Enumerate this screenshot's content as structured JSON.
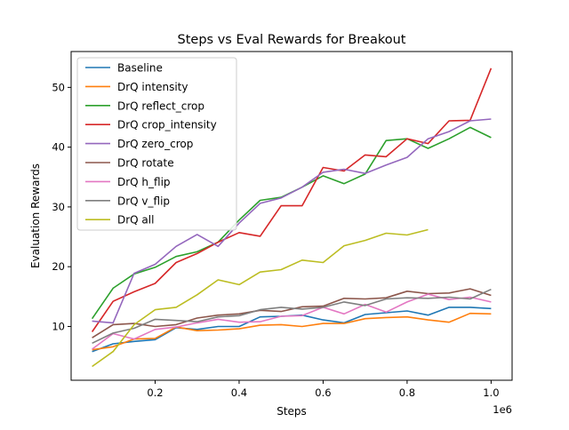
{
  "chart_data": {
    "type": "line",
    "title": "Steps vs Eval Rewards for Breakout",
    "xlabel": "Steps",
    "ylabel": "Evaluation Rewards",
    "x_scale_label": "1e6",
    "xlim": [
      0.0,
      1.05
    ],
    "ylim": [
      1.0,
      56.0
    ],
    "xticks": [
      0.2,
      0.4,
      0.6,
      0.8,
      1.0
    ],
    "xtick_labels": [
      "0.2",
      "0.4",
      "0.6",
      "0.8",
      "1.0"
    ],
    "yticks": [
      10,
      20,
      30,
      40,
      50
    ],
    "ytick_labels": [
      "10",
      "20",
      "30",
      "40",
      "50"
    ],
    "grid": false,
    "legend_position": "top-left",
    "series": [
      {
        "name": "Baseline",
        "color": "#1f77b4",
        "x": [
          0.05,
          0.1,
          0.15,
          0.2,
          0.25,
          0.3,
          0.35,
          0.4,
          0.45,
          0.5,
          0.55,
          0.6,
          0.65,
          0.7,
          0.75,
          0.8,
          0.85,
          0.9,
          0.95,
          1.0
        ],
        "y": [
          5.8,
          7.1,
          7.5,
          7.8,
          9.8,
          9.5,
          10.0,
          10.0,
          11.6,
          11.7,
          11.9,
          11.1,
          10.6,
          12.0,
          12.3,
          12.6,
          11.9,
          13.2,
          13.2,
          13.0
        ]
      },
      {
        "name": "DrQ intensity",
        "color": "#ff7f0e",
        "x": [
          0.05,
          0.1,
          0.15,
          0.2,
          0.25,
          0.3,
          0.35,
          0.4,
          0.45,
          0.5,
          0.55,
          0.6,
          0.65,
          0.7,
          0.75,
          0.8,
          0.85,
          0.9,
          0.95,
          1.0
        ],
        "y": [
          6.1,
          6.6,
          7.9,
          8.0,
          9.9,
          9.3,
          9.4,
          9.6,
          10.2,
          10.3,
          10.0,
          10.5,
          10.5,
          11.3,
          11.5,
          11.6,
          11.1,
          10.7,
          12.2,
          12.1
        ]
      },
      {
        "name": "DrQ reflect_crop",
        "color": "#2ca02c",
        "x": [
          0.05,
          0.1,
          0.15,
          0.2,
          0.25,
          0.3,
          0.35,
          0.4,
          0.45,
          0.5,
          0.55,
          0.6,
          0.65,
          0.7,
          0.75,
          0.8,
          0.85,
          0.9,
          0.95,
          1.0
        ],
        "y": [
          11.3,
          16.4,
          18.8,
          19.9,
          21.7,
          22.5,
          24.1,
          27.8,
          31.1,
          31.6,
          33.3,
          35.2,
          33.9,
          35.5,
          41.1,
          41.4,
          39.8,
          41.4,
          43.3,
          41.6
        ]
      },
      {
        "name": "DrQ crop_intensity",
        "color": "#d62728",
        "x": [
          0.05,
          0.1,
          0.15,
          0.2,
          0.25,
          0.3,
          0.35,
          0.4,
          0.45,
          0.5,
          0.55,
          0.6,
          0.65,
          0.7,
          0.75,
          0.8,
          0.85,
          0.9,
          0.95,
          1.0
        ],
        "y": [
          9.1,
          14.2,
          15.8,
          17.2,
          20.7,
          22.2,
          24.1,
          25.7,
          25.1,
          30.2,
          30.2,
          36.6,
          36.0,
          38.7,
          38.4,
          41.4,
          40.6,
          44.4,
          44.5,
          53.2
        ]
      },
      {
        "name": "DrQ zero_crop",
        "color": "#9467bd",
        "x": [
          0.05,
          0.1,
          0.15,
          0.2,
          0.25,
          0.3,
          0.35,
          0.4,
          0.45,
          0.5,
          0.55,
          0.6,
          0.65,
          0.7,
          0.75,
          0.8,
          0.85,
          0.9,
          0.95,
          1.0
        ],
        "y": [
          10.9,
          10.6,
          18.9,
          20.4,
          23.4,
          25.4,
          23.4,
          27.3,
          30.6,
          31.5,
          33.3,
          35.8,
          36.3,
          35.6,
          37.0,
          38.3,
          41.4,
          42.6,
          44.4,
          44.7
        ]
      },
      {
        "name": "DrQ rotate",
        "color": "#8c564b",
        "x": [
          0.05,
          0.1,
          0.15,
          0.2,
          0.25,
          0.3,
          0.35,
          0.4,
          0.45,
          0.5,
          0.55,
          0.6,
          0.65,
          0.7,
          0.75,
          0.8,
          0.85,
          0.9,
          0.95,
          1.0
        ],
        "y": [
          8.1,
          10.3,
          10.5,
          10.0,
          10.3,
          11.4,
          11.9,
          12.1,
          12.7,
          12.5,
          13.3,
          13.4,
          14.7,
          14.6,
          14.8,
          15.9,
          15.5,
          15.6,
          16.3,
          15.2
        ]
      },
      {
        "name": "DrQ h_flip",
        "color": "#e377c2",
        "x": [
          0.05,
          0.1,
          0.15,
          0.2,
          0.25,
          0.3,
          0.35,
          0.4,
          0.45,
          0.5,
          0.55,
          0.6,
          0.65,
          0.7,
          0.75,
          0.8,
          0.85,
          0.9,
          0.95,
          1.0
        ],
        "y": [
          6.2,
          8.8,
          7.9,
          9.5,
          9.9,
          10.6,
          11.2,
          10.7,
          10.8,
          11.7,
          11.8,
          13.2,
          12.1,
          13.7,
          12.4,
          14.1,
          15.4,
          14.5,
          14.9,
          14.1
        ]
      },
      {
        "name": "DrQ v_flip",
        "color": "#7f7f7f",
        "x": [
          0.05,
          0.1,
          0.15,
          0.2,
          0.25,
          0.3,
          0.35,
          0.4,
          0.45,
          0.5,
          0.55,
          0.6,
          0.65,
          0.7,
          0.75,
          0.8,
          0.85,
          0.9,
          0.95,
          1.0
        ],
        "y": [
          7.2,
          8.9,
          9.7,
          11.2,
          11.0,
          10.8,
          11.6,
          11.8,
          12.8,
          13.2,
          12.9,
          13.2,
          14.1,
          13.5,
          14.6,
          14.8,
          14.7,
          14.9,
          14.6,
          16.2
        ]
      },
      {
        "name": "DrQ all",
        "color": "#bcbd22",
        "x": [
          0.05,
          0.1,
          0.15,
          0.2,
          0.25,
          0.3,
          0.35,
          0.4,
          0.45,
          0.5,
          0.55,
          0.6,
          0.65,
          0.7,
          0.75,
          0.8,
          0.85
        ],
        "y": [
          3.3,
          5.8,
          10.3,
          12.8,
          13.2,
          15.3,
          17.8,
          17.0,
          19.1,
          19.5,
          21.1,
          20.7,
          23.5,
          24.4,
          25.6,
          25.3,
          26.2
        ]
      }
    ]
  }
}
